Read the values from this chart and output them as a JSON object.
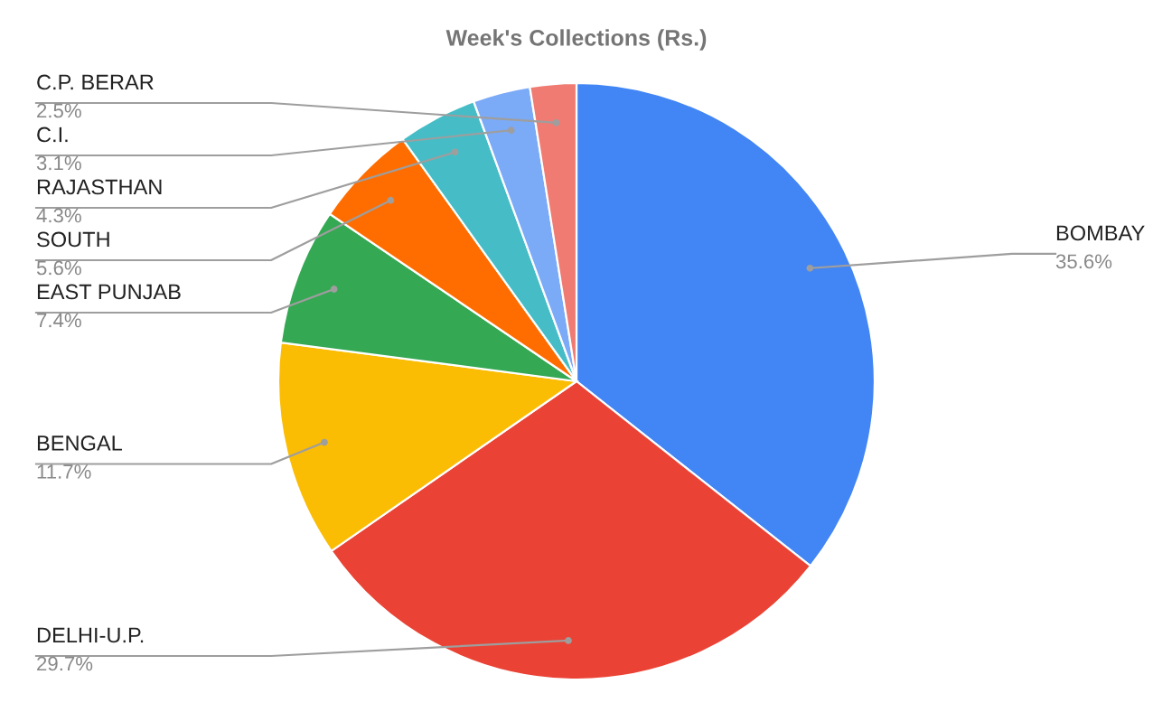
{
  "chart_data": {
    "type": "pie",
    "title": "Week's Collections (Rs.)",
    "categories": [
      "BOMBAY",
      "DELHI-U.P.",
      "BENGAL",
      "EAST PUNJAB",
      "SOUTH",
      "RAJASTHAN",
      "C.I.",
      "C.P. BERAR"
    ],
    "values": [
      35.6,
      29.7,
      11.7,
      7.4,
      5.6,
      4.3,
      3.1,
      2.5
    ],
    "value_labels": [
      "35.6%",
      "29.7%",
      "11.7%",
      "7.4%",
      "5.6%",
      "4.3%",
      "3.1%",
      "2.5%"
    ],
    "colors": [
      "#4285f4",
      "#ea4335",
      "#fbbc04",
      "#34a853",
      "#ff6d01",
      "#46bdc6",
      "#7baaf7",
      "#f07b72"
    ],
    "legend": false
  }
}
